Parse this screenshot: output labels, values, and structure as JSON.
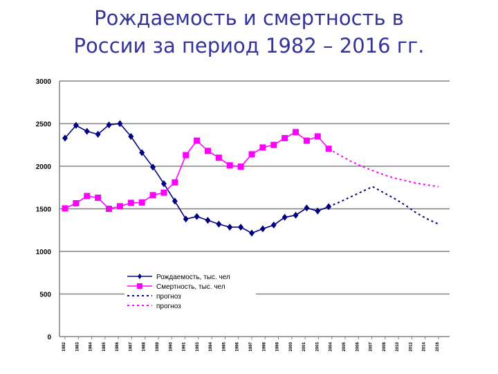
{
  "title": {
    "line1": "Рождаемость и смертность в",
    "line2": "России за период 1982 – 2016 гг."
  },
  "colors": {
    "title": "#333399",
    "births": "#000080",
    "deaths": "#FF00FF"
  },
  "chart_data": {
    "type": "line",
    "grid": true,
    "legend_position": "bottom-center",
    "ylim": [
      0,
      3000
    ],
    "yticks": [
      "0",
      "500",
      "1000",
      "1500",
      "2000",
      "2500",
      "3000"
    ],
    "x": [
      "1982",
      "1983",
      "1984",
      "1985",
      "1986",
      "1987",
      "1988",
      "1989",
      "1990",
      "1991",
      "1992",
      "1993",
      "1994",
      "1995",
      "1996",
      "1997",
      "1998",
      "1999",
      "2000",
      "2001",
      "2002",
      "2003",
      "2004",
      "2005",
      "2006",
      "2007",
      "2008",
      "2009",
      "2010",
      "2011",
      "2012",
      "2013",
      "2014",
      "2015",
      "2016"
    ],
    "xtick_labels": [
      "1982",
      "1983",
      "1984",
      "1985",
      "1986",
      "1987",
      "1988",
      "1989",
      "1990",
      "1991",
      "1993",
      "1994",
      "1995",
      "1996",
      "1997",
      "1998",
      "1999",
      "2000",
      "2001",
      "2003",
      "2004",
      "2005",
      "2006",
      "2007",
      "2008",
      "2010",
      "2012",
      "2014",
      "2016"
    ],
    "series": [
      {
        "name": "Рождаемость, тыс. чел",
        "style": "solid",
        "marker": "diamond",
        "color": "#000080",
        "values": [
          2330,
          2480,
          2410,
          2375,
          2485,
          2500,
          2350,
          2160,
          1990,
          1795,
          1590,
          1380,
          1410,
          1365,
          1320,
          1285,
          1285,
          1215,
          1265,
          1310,
          1400,
          1425,
          1510,
          1475,
          1525,
          null,
          null,
          null,
          null,
          null,
          null,
          null,
          null,
          null,
          null
        ]
      },
      {
        "name": "Смертность, тыс. чел",
        "style": "solid",
        "marker": "square",
        "color": "#FF00FF",
        "values": [
          1505,
          1565,
          1650,
          1630,
          1500,
          1530,
          1570,
          1575,
          1660,
          1690,
          1810,
          2130,
          2300,
          2180,
          2100,
          2010,
          1995,
          2140,
          2220,
          2250,
          2330,
          2400,
          2300,
          2350,
          2205,
          null,
          null,
          null,
          null,
          null,
          null,
          null,
          null,
          null,
          null
        ]
      },
      {
        "name": "прогноз",
        "style": "dotted",
        "marker": "none",
        "color": "#000080",
        "values": [
          null,
          null,
          null,
          null,
          null,
          null,
          null,
          null,
          null,
          null,
          null,
          null,
          null,
          null,
          null,
          null,
          null,
          null,
          null,
          null,
          null,
          null,
          null,
          null,
          1525,
          1580,
          1640,
          1700,
          1760,
          1690,
          1620,
          1540,
          1450,
          1380,
          1320
        ]
      },
      {
        "name": "прогноз",
        "style": "dotted",
        "marker": "none",
        "color": "#FF00FF",
        "values": [
          null,
          null,
          null,
          null,
          null,
          null,
          null,
          null,
          null,
          null,
          null,
          null,
          null,
          null,
          null,
          null,
          null,
          null,
          null,
          null,
          null,
          null,
          null,
          null,
          2205,
          2130,
          2060,
          2000,
          1950,
          1900,
          1860,
          1830,
          1800,
          1780,
          1760
        ]
      }
    ]
  }
}
